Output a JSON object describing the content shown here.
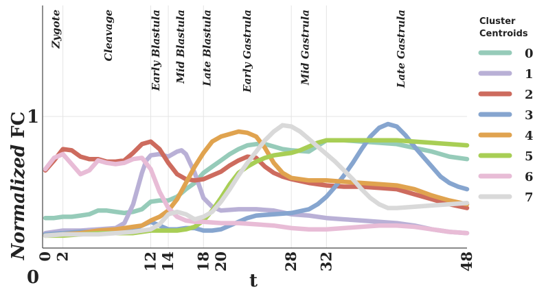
{
  "chart_data": {
    "type": "line",
    "xlabel": "t",
    "ylabel_italic": "Normalized",
    "ylabel_rest": "FC",
    "xlim": [
      0,
      48
    ],
    "ylim": [
      0,
      1.25
    ],
    "y_ticks": [
      {
        "value": 0,
        "label": "0"
      },
      {
        "value": 1,
        "label": "1"
      }
    ],
    "x_ticks": [
      {
        "value": 0,
        "label": "0"
      },
      {
        "value": 2,
        "label": "2"
      },
      {
        "value": 12,
        "label": "12"
      },
      {
        "value": 14,
        "label": "14"
      },
      {
        "value": 18,
        "label": "18"
      },
      {
        "value": 20,
        "label": "20"
      },
      {
        "value": 28,
        "label": "28"
      },
      {
        "value": 32,
        "label": "32"
      },
      {
        "value": 48,
        "label": "48"
      }
    ],
    "stage_lines": [
      2,
      12,
      14,
      18,
      28,
      32
    ],
    "stages": [
      {
        "label": "Zygote",
        "x": 1.2
      },
      {
        "label": "Cleavage",
        "x": 7.2
      },
      {
        "label": "Early Blastula",
        "x": 12.6
      },
      {
        "label": "Mid Blastula",
        "x": 15.4
      },
      {
        "label": "Late Blastula",
        "x": 18.4
      },
      {
        "label": "Early Gastrula",
        "x": 23.0
      },
      {
        "label": "Mid Gastrula",
        "x": 29.6
      },
      {
        "label": "Late Gastrula",
        "x": 40.5
      }
    ],
    "grid": "vertical stage lines and horizontal line at y=1",
    "legend": {
      "title_line1": "Cluster",
      "title_line2": "Centroids",
      "placement": "right"
    },
    "series": [
      {
        "name": "0",
        "color": "#96cbb9",
        "x": [
          0,
          1,
          2,
          3,
          4,
          5,
          6,
          7,
          8,
          9,
          10,
          11,
          12,
          13,
          14,
          15,
          16,
          17,
          18,
          19,
          20,
          21,
          22,
          23,
          24,
          25,
          26,
          27,
          28,
          30,
          32,
          34,
          36,
          38,
          40,
          42,
          44,
          46,
          48
        ],
        "y": [
          0.19,
          0.19,
          0.2,
          0.2,
          0.21,
          0.22,
          0.25,
          0.25,
          0.24,
          0.23,
          0.24,
          0.26,
          0.32,
          0.33,
          0.33,
          0.36,
          0.42,
          0.47,
          0.55,
          0.6,
          0.65,
          0.7,
          0.74,
          0.77,
          0.78,
          0.78,
          0.76,
          0.74,
          0.73,
          0.72,
          0.81,
          0.81,
          0.8,
          0.79,
          0.78,
          0.75,
          0.72,
          0.68,
          0.66
        ]
      },
      {
        "name": "1",
        "color": "#b9b0d6",
        "x": [
          0,
          1,
          2,
          4,
          6,
          8,
          9,
          10,
          11,
          11.5,
          12,
          13,
          14,
          15,
          15.5,
          16,
          17,
          18,
          19,
          20,
          22,
          24,
          26,
          28,
          30,
          32,
          34,
          36,
          38,
          40,
          42,
          44,
          46,
          48
        ],
        "y": [
          0.07,
          0.08,
          0.09,
          0.09,
          0.1,
          0.11,
          0.15,
          0.3,
          0.55,
          0.65,
          0.69,
          0.7,
          0.68,
          0.72,
          0.73,
          0.7,
          0.55,
          0.35,
          0.28,
          0.25,
          0.26,
          0.26,
          0.25,
          0.22,
          0.21,
          0.19,
          0.18,
          0.17,
          0.16,
          0.15,
          0.13,
          0.1,
          0.08,
          0.07
        ]
      },
      {
        "name": "2",
        "color": "#cd6b5e",
        "x": [
          0,
          1,
          2,
          3,
          4,
          5,
          6,
          7,
          8,
          9,
          10,
          11,
          12,
          13,
          14,
          15,
          16,
          17,
          18,
          19,
          20,
          21,
          22,
          23,
          24,
          25,
          26,
          27,
          28,
          30,
          32,
          34,
          36,
          38,
          40,
          42,
          44,
          46,
          48
        ],
        "y": [
          0.57,
          0.65,
          0.74,
          0.73,
          0.68,
          0.66,
          0.66,
          0.64,
          0.64,
          0.65,
          0.71,
          0.78,
          0.8,
          0.74,
          0.63,
          0.54,
          0.5,
          0.49,
          0.5,
          0.53,
          0.56,
          0.61,
          0.65,
          0.68,
          0.67,
          0.6,
          0.55,
          0.52,
          0.5,
          0.47,
          0.45,
          0.44,
          0.44,
          0.43,
          0.42,
          0.38,
          0.34,
          0.3,
          0.27
        ]
      },
      {
        "name": "3",
        "color": "#86a5cf",
        "x": [
          0,
          2,
          4,
          6,
          8,
          10,
          11,
          12,
          13,
          14,
          15,
          16,
          17,
          18,
          19,
          20,
          21,
          22,
          23,
          24,
          26,
          28,
          30,
          31,
          32,
          33,
          34,
          35,
          36,
          37,
          38,
          39,
          40,
          41,
          42,
          43,
          44,
          45,
          46,
          47,
          48
        ],
        "y": [
          0.06,
          0.07,
          0.08,
          0.08,
          0.09,
          0.1,
          0.13,
          0.16,
          0.13,
          0.1,
          0.1,
          0.11,
          0.11,
          0.09,
          0.09,
          0.1,
          0.13,
          0.16,
          0.19,
          0.21,
          0.22,
          0.23,
          0.26,
          0.3,
          0.36,
          0.44,
          0.53,
          0.63,
          0.74,
          0.84,
          0.91,
          0.94,
          0.92,
          0.85,
          0.76,
          0.68,
          0.6,
          0.52,
          0.47,
          0.44,
          0.42
        ]
      },
      {
        "name": "4",
        "color": "#e0a34f",
        "x": [
          0,
          2,
          4,
          6,
          8,
          10,
          11,
          12,
          13,
          14,
          15,
          16,
          17,
          18,
          19,
          20,
          21,
          22,
          23,
          24,
          25,
          26,
          27,
          28,
          30,
          32,
          34,
          36,
          38,
          40,
          42,
          44,
          46,
          48
        ],
        "y": [
          0.05,
          0.06,
          0.07,
          0.09,
          0.1,
          0.12,
          0.13,
          0.17,
          0.2,
          0.25,
          0.34,
          0.47,
          0.6,
          0.71,
          0.8,
          0.84,
          0.86,
          0.88,
          0.87,
          0.84,
          0.75,
          0.63,
          0.55,
          0.51,
          0.49,
          0.49,
          0.48,
          0.47,
          0.46,
          0.45,
          0.42,
          0.37,
          0.33,
          0.3
        ]
      },
      {
        "name": "5",
        "color": "#a8ce55",
        "x": [
          0,
          2,
          4,
          6,
          8,
          10,
          12,
          14,
          15,
          16,
          17,
          18,
          19,
          20,
          21,
          22,
          23,
          24,
          25,
          26,
          27,
          28,
          29,
          30,
          31,
          32,
          33,
          34,
          36,
          38,
          40,
          42,
          44,
          46,
          48
        ],
        "y": [
          0.05,
          0.05,
          0.06,
          0.07,
          0.07,
          0.07,
          0.09,
          0.09,
          0.09,
          0.1,
          0.12,
          0.17,
          0.25,
          0.35,
          0.46,
          0.55,
          0.6,
          0.64,
          0.67,
          0.69,
          0.7,
          0.71,
          0.73,
          0.76,
          0.79,
          0.81,
          0.81,
          0.81,
          0.81,
          0.81,
          0.81,
          0.8,
          0.79,
          0.78,
          0.77
        ]
      },
      {
        "name": "6",
        "color": "#e8bcd6",
        "x": [
          0,
          1,
          2,
          3,
          4,
          5,
          6,
          7,
          8,
          9,
          10,
          11,
          12,
          13,
          14,
          15,
          16,
          17,
          18,
          20,
          22,
          24,
          26,
          28,
          30,
          32,
          34,
          36,
          38,
          40,
          42,
          44,
          46,
          48
        ],
        "y": [
          0.58,
          0.67,
          0.7,
          0.62,
          0.54,
          0.57,
          0.65,
          0.63,
          0.62,
          0.63,
          0.66,
          0.67,
          0.58,
          0.4,
          0.27,
          0.2,
          0.17,
          0.16,
          0.16,
          0.15,
          0.15,
          0.14,
          0.13,
          0.11,
          0.1,
          0.1,
          0.11,
          0.12,
          0.13,
          0.13,
          0.12,
          0.1,
          0.08,
          0.07
        ]
      },
      {
        "name": "7",
        "color": "#d9d9d9",
        "x": [
          0,
          2,
          4,
          6,
          8,
          10,
          12,
          13,
          14,
          15,
          16,
          17,
          18,
          19,
          20,
          21,
          22,
          23,
          24,
          25,
          26,
          27,
          28,
          29,
          30,
          31,
          32,
          33,
          34,
          35,
          36,
          37,
          38,
          39,
          40,
          42,
          44,
          46,
          48
        ],
        "y": [
          0.05,
          0.06,
          0.06,
          0.06,
          0.07,
          0.08,
          0.1,
          0.14,
          0.22,
          0.24,
          0.22,
          0.18,
          0.2,
          0.24,
          0.32,
          0.42,
          0.53,
          0.63,
          0.72,
          0.81,
          0.88,
          0.93,
          0.92,
          0.88,
          0.82,
          0.76,
          0.7,
          0.64,
          0.57,
          0.5,
          0.42,
          0.35,
          0.3,
          0.27,
          0.27,
          0.28,
          0.29,
          0.3,
          0.31
        ]
      }
    ]
  }
}
